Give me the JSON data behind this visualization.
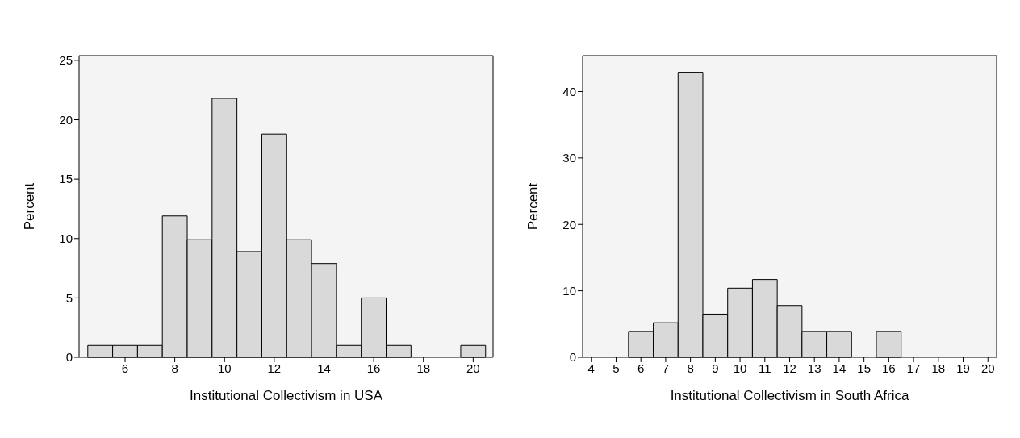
{
  "chart_data": [
    {
      "type": "histogram",
      "xlabel": "Institutional Collectivism in USA",
      "ylabel": "Percent",
      "bins": [
        4.5,
        5.5,
        6.5,
        7.5,
        8.5,
        9.5,
        10.5,
        11.5,
        12.5,
        13.5,
        14.5,
        15.5,
        16.5,
        17.5,
        18.5,
        19.5,
        20.5
      ],
      "values": [
        1,
        1,
        1,
        11.9,
        9.9,
        21.8,
        8.9,
        18.8,
        9.9,
        7.9,
        1,
        5,
        1,
        0,
        0,
        1
      ],
      "color": "#d9d9d9",
      "xlim": [
        4.15,
        20.8
      ],
      "xticks": [
        6,
        8,
        10,
        12,
        14,
        16,
        18,
        20
      ],
      "ylim": [
        0,
        25.4
      ],
      "yticks": [
        0,
        5,
        10,
        15,
        20,
        25
      ],
      "grid": false
    },
    {
      "type": "histogram",
      "xlabel": "Institutional Collectivism in South Africa",
      "ylabel": "Percent",
      "bins": [
        5.5,
        6.5,
        7.5,
        8.5,
        9.5,
        10.5,
        11.5,
        12.5,
        13.5,
        14.5,
        15.5,
        16.5
      ],
      "values": [
        3.9,
        5.2,
        42.9,
        6.5,
        10.4,
        11.7,
        7.8,
        3.9,
        3.9,
        0,
        3.9
      ],
      "color": "#d9d9d9",
      "xlim": [
        3.65,
        20.35
      ],
      "xticks": [
        4,
        5,
        6,
        7,
        8,
        9,
        10,
        11,
        12,
        13,
        14,
        15,
        16,
        17,
        18,
        19,
        20
      ],
      "ylim": [
        0,
        45.4
      ],
      "yticks": [
        0,
        10,
        20,
        30,
        40
      ],
      "grid": false
    }
  ]
}
